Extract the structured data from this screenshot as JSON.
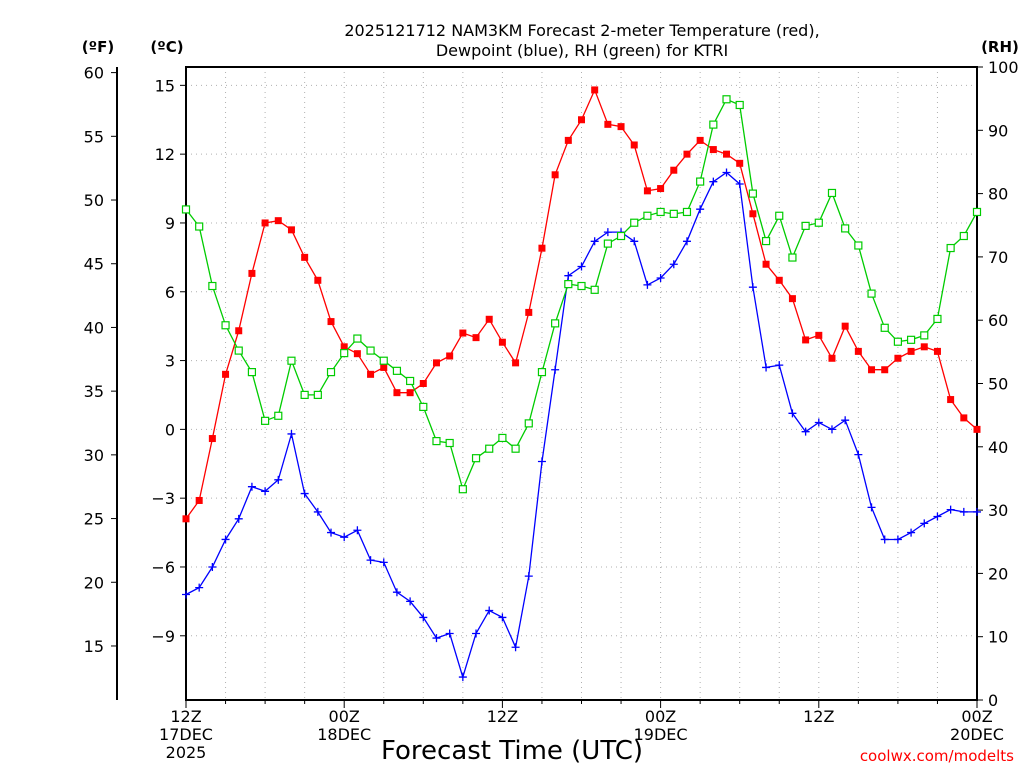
{
  "chart_data": {
    "type": "line",
    "title": [
      "2025121712 NAM3KM Forecast 2-meter Temperature (red),",
      "Dewpoint (blue), RH (green) for KTRI"
    ],
    "xlabel": "Forecast Time (UTC)",
    "unit_labels": {
      "fahrenheit": "(ºF)",
      "celsius": "(ºC)",
      "rh": "(RH)"
    },
    "credit": "coolwx.com/modelts",
    "x_range": [
      0,
      60
    ],
    "x_ticks": [
      {
        "x": 0,
        "lines": [
          "12Z",
          "17DEC",
          "2025"
        ]
      },
      {
        "x": 12,
        "lines": [
          "00Z",
          "18DEC"
        ]
      },
      {
        "x": 24,
        "lines": [
          "12Z"
        ]
      },
      {
        "x": 36,
        "lines": [
          "00Z",
          "19DEC"
        ]
      },
      {
        "x": 48,
        "lines": [
          "12Z"
        ]
      },
      {
        "x": 60,
        "lines": [
          "00Z",
          "20DEC"
        ]
      }
    ],
    "celsius_axis": {
      "ylim": [
        -11.8,
        15.8
      ],
      "ticks": [
        15,
        12,
        9,
        6,
        3,
        0,
        -3,
        -6,
        -9
      ],
      "tick_labels": [
        "15",
        "12",
        "9",
        "6",
        "3",
        "0",
        "−3",
        "−6",
        "−9"
      ]
    },
    "fahrenheit_axis": {
      "ticks": [
        60,
        55,
        50,
        45,
        40,
        35,
        30,
        25,
        20,
        15
      ],
      "tick_labels": [
        "60",
        "55",
        "50",
        "45",
        "40",
        "35",
        "30",
        "25",
        "20",
        "15"
      ]
    },
    "rh_axis": {
      "ylim": [
        0,
        100
      ],
      "ticks": [
        100,
        90,
        80,
        70,
        60,
        50,
        40,
        30,
        20,
        10,
        0
      ],
      "tick_labels": [
        "100",
        "90",
        "80",
        "70",
        "60",
        "50",
        "40",
        "30",
        "20",
        "10",
        "0"
      ]
    },
    "series": [
      {
        "name": "2-meter Temperature",
        "units": "C",
        "color": "#ff0000",
        "marker": "filled-square",
        "x": [
          0,
          1,
          2,
          3,
          4,
          5,
          6,
          7,
          8,
          9,
          10,
          11,
          12,
          13,
          14,
          15,
          16,
          17,
          18,
          19,
          20,
          21,
          22,
          23,
          24,
          25,
          26,
          27,
          28,
          29,
          30,
          31,
          32,
          33,
          34,
          35,
          36,
          37,
          38,
          39,
          40,
          41,
          42,
          43,
          44,
          45,
          46,
          47,
          48,
          49,
          50,
          51,
          52,
          53,
          54,
          55,
          56,
          57,
          58,
          59,
          60
        ],
        "values": [
          -3.9,
          -3.1,
          -0.4,
          2.4,
          4.3,
          6.8,
          9.0,
          9.1,
          8.7,
          7.5,
          6.5,
          4.7,
          3.6,
          3.3,
          2.4,
          2.7,
          1.6,
          1.6,
          2.0,
          2.9,
          3.2,
          4.2,
          4.0,
          4.8,
          3.8,
          2.9,
          5.1,
          7.9,
          11.1,
          12.6,
          13.5,
          14.8,
          13.3,
          13.2,
          12.4,
          10.4,
          10.5,
          11.3,
          12.0,
          12.6,
          12.2,
          12.0,
          11.6,
          9.4,
          7.2,
          6.5,
          5.7,
          3.9,
          4.1,
          3.1,
          4.5,
          3.4,
          2.6,
          2.6,
          3.1,
          3.4,
          3.6,
          3.4,
          1.3,
          0.5,
          0.0
        ]
      },
      {
        "name": "Dewpoint",
        "units": "C",
        "color": "#0000ff",
        "marker": "plus",
        "x": [
          0,
          1,
          2,
          3,
          4,
          5,
          6,
          7,
          8,
          9,
          10,
          11,
          12,
          13,
          14,
          15,
          16,
          17,
          18,
          19,
          20,
          21,
          22,
          23,
          24,
          25,
          26,
          27,
          28,
          29,
          30,
          31,
          32,
          33,
          34,
          35,
          36,
          37,
          38,
          39,
          40,
          41,
          42,
          43,
          44,
          45,
          46,
          47,
          48,
          49,
          50,
          51,
          52,
          53,
          54,
          55,
          56,
          57,
          58,
          59,
          60
        ],
        "values": [
          -7.2,
          -6.9,
          -6.0,
          -4.8,
          -3.9,
          -2.5,
          -2.7,
          -2.2,
          -0.2,
          -2.8,
          -3.6,
          -4.5,
          -4.7,
          -4.4,
          -5.7,
          -5.8,
          -7.1,
          -7.5,
          -8.2,
          -9.1,
          -8.9,
          -10.8,
          -8.9,
          -7.9,
          -8.2,
          -9.5,
          -6.4,
          -1.4,
          2.6,
          6.7,
          7.1,
          8.2,
          8.6,
          8.6,
          8.2,
          6.3,
          6.6,
          7.2,
          8.2,
          9.6,
          10.8,
          11.2,
          10.7,
          6.2,
          2.7,
          2.8,
          0.7,
          -0.1,
          0.3,
          0.0,
          0.4,
          -1.1,
          -3.4,
          -4.8,
          -4.8,
          -4.5,
          -4.1,
          -3.8,
          -3.5,
          -3.6,
          -3.6
        ]
      },
      {
        "name": "RH",
        "units": "%",
        "color": "#00cc00",
        "marker": "open-square",
        "x": [
          0,
          1,
          2,
          3,
          4,
          5,
          6,
          7,
          8,
          9,
          10,
          11,
          12,
          13,
          14,
          15,
          16,
          17,
          18,
          19,
          20,
          21,
          22,
          23,
          24,
          25,
          26,
          27,
          28,
          29,
          30,
          31,
          32,
          33,
          34,
          35,
          36,
          37,
          38,
          39,
          40,
          41,
          42,
          43,
          44,
          45,
          46,
          47,
          48,
          49,
          50,
          51,
          52,
          53,
          54,
          55,
          56,
          57,
          58,
          59,
          60
        ],
        "values": [
          77.5,
          74.8,
          65.4,
          59.2,
          55.2,
          51.8,
          44.1,
          44.9,
          53.6,
          48.2,
          48.2,
          51.8,
          54.8,
          57.1,
          55.2,
          53.6,
          52.0,
          50.4,
          46.3,
          40.9,
          40.6,
          33.3,
          38.2,
          39.7,
          41.4,
          39.7,
          43.7,
          51.8,
          59.5,
          65.7,
          65.4,
          64.8,
          72.1,
          73.3,
          75.4,
          76.5,
          77.1,
          76.8,
          77.1,
          81.9,
          90.9,
          94.9,
          94.0,
          80.0,
          72.5,
          76.5,
          69.9,
          74.9,
          75.4,
          80.1,
          74.5,
          71.8,
          64.2,
          58.8,
          56.6,
          56.9,
          57.6,
          60.2,
          71.4,
          73.3,
          77.1
        ]
      }
    ]
  }
}
